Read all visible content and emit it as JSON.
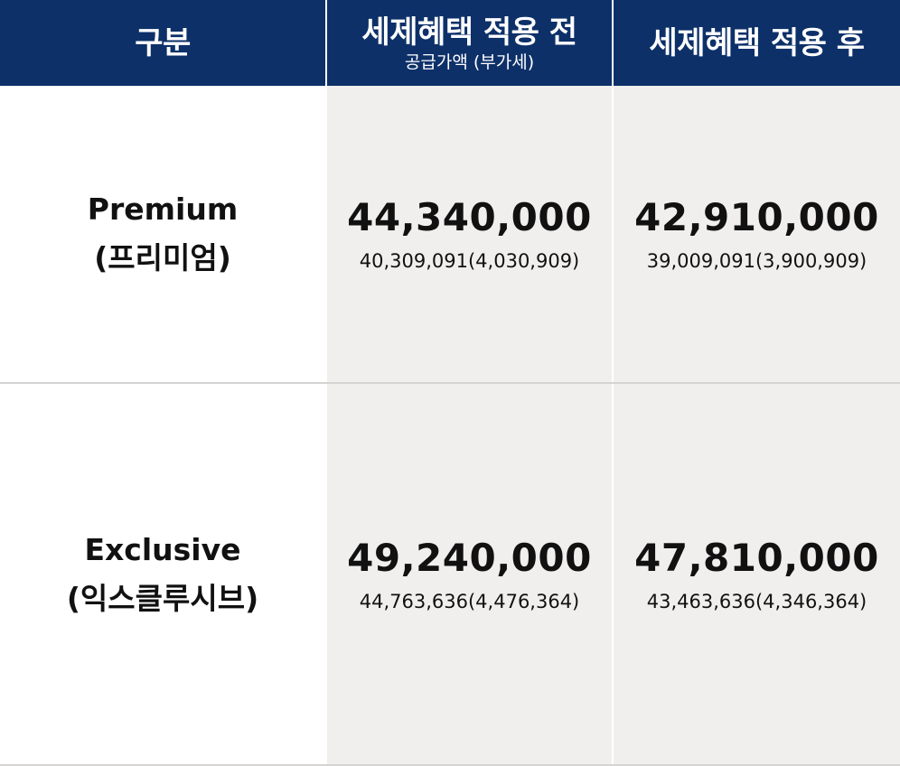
{
  "header": {
    "category": "구분",
    "before_title": "세제혜택 적용 전",
    "before_subtitle": "공급가액 (부가세)",
    "after_title": "세제혜택 적용 후"
  },
  "rows": [
    {
      "name_en": "Premium",
      "name_ko": "(프리미엄)",
      "before_price": "44,340,000",
      "before_detail": "40,309,091(4,030,909)",
      "after_price": "42,910,000",
      "after_detail": "39,009,091(3,900,909)"
    },
    {
      "name_en": "Exclusive",
      "name_ko": "(익스클루시브)",
      "before_price": "49,240,000",
      "before_detail": "44,763,636(4,476,364)",
      "after_price": "47,810,000",
      "after_detail": "43,463,636(4,346,364)"
    }
  ],
  "colors": {
    "header_bg": "#0d3069",
    "header_text": "#ffffff",
    "value_cell_bg": "#f1efee"
  }
}
